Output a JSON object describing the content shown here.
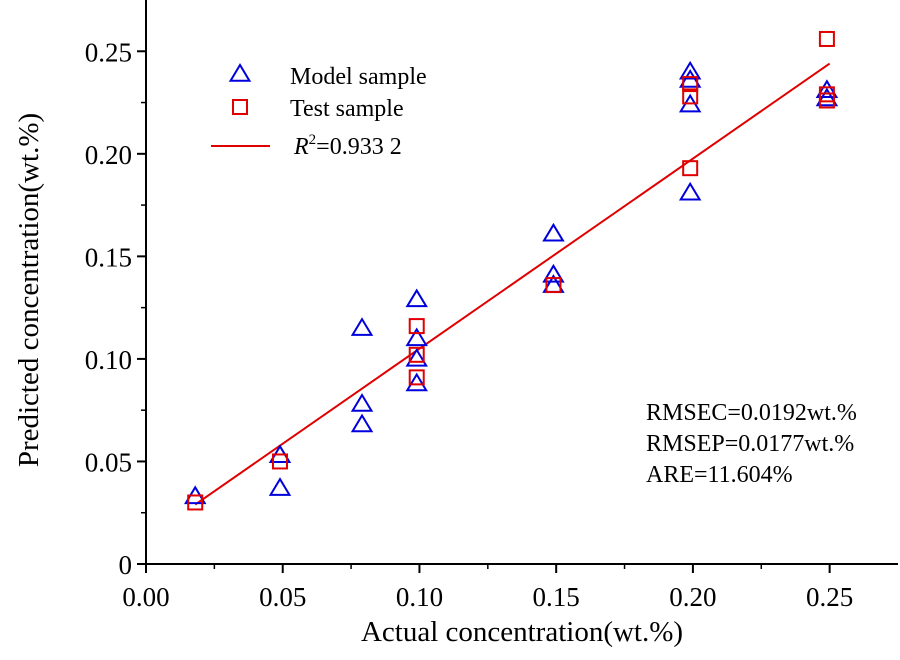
{
  "chart_data": {
    "type": "scatter",
    "xlabel": "Actual concentration(wt.%)",
    "ylabel": "Predicted concentration(wt.%)",
    "xlim": [
      0,
      0.275
    ],
    "ylim": [
      0,
      0.275
    ],
    "x_ticks": [
      "0.00",
      "0.05",
      "0.10",
      "0.15",
      "0.20",
      "0.25"
    ],
    "y_ticks": [
      "0",
      "0.05",
      "0.10",
      "0.15",
      "0.20",
      "0.25"
    ],
    "grid": false,
    "legend_position": "top-left",
    "series": [
      {
        "name": "Model sample",
        "marker": "triangle",
        "color": "#0000dd",
        "points": [
          [
            0.018,
            0.033
          ],
          [
            0.049,
            0.053
          ],
          [
            0.049,
            0.037
          ],
          [
            0.079,
            0.115
          ],
          [
            0.079,
            0.078
          ],
          [
            0.079,
            0.068
          ],
          [
            0.099,
            0.129
          ],
          [
            0.099,
            0.11
          ],
          [
            0.099,
            0.1
          ],
          [
            0.099,
            0.088
          ],
          [
            0.149,
            0.161
          ],
          [
            0.149,
            0.141
          ],
          [
            0.149,
            0.136
          ],
          [
            0.199,
            0.24
          ],
          [
            0.199,
            0.236
          ],
          [
            0.199,
            0.224
          ],
          [
            0.199,
            0.181
          ],
          [
            0.249,
            0.231
          ],
          [
            0.249,
            0.227
          ]
        ]
      },
      {
        "name": "Test sample",
        "marker": "square",
        "color": "#e00000",
        "points": [
          [
            0.018,
            0.03
          ],
          [
            0.049,
            0.05
          ],
          [
            0.099,
            0.116
          ],
          [
            0.099,
            0.102
          ],
          [
            0.099,
            0.091
          ],
          [
            0.149,
            0.136
          ],
          [
            0.199,
            0.234
          ],
          [
            0.199,
            0.228
          ],
          [
            0.199,
            0.193
          ],
          [
            0.249,
            0.256
          ],
          [
            0.249,
            0.229
          ],
          [
            0.249,
            0.226
          ]
        ]
      }
    ],
    "fit_line": {
      "name_prefix": "R",
      "name_superscript": "2",
      "name_value": "=0.933 2",
      "color": "#e00000",
      "x": [
        0.018,
        0.25
      ],
      "y": [
        0.029,
        0.244
      ]
    },
    "annotations": [
      "RMSEC=0.0192wt.%",
      "RMSEP=0.0177wt.%",
      "ARE=11.604%"
    ]
  }
}
